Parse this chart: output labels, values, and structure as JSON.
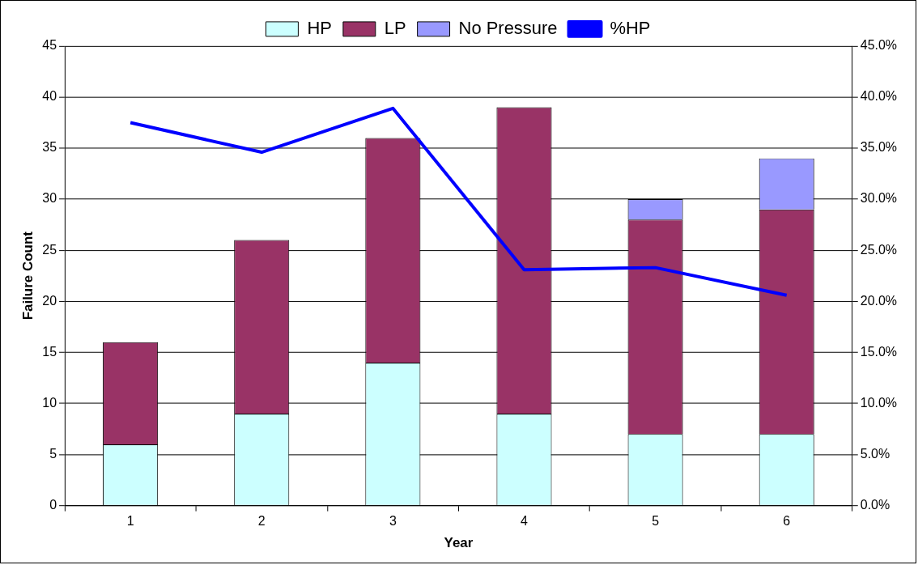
{
  "chart_data": {
    "type": "bar",
    "stacked": true,
    "xlabel": "Year",
    "ylabel": "Failure Count",
    "categories": [
      "1",
      "2",
      "3",
      "4",
      "5",
      "6"
    ],
    "series": [
      {
        "name": "HP",
        "color": "#ccffff",
        "values": [
          6,
          9,
          14,
          9,
          7,
          7
        ]
      },
      {
        "name": "LP",
        "color": "#993366",
        "values": [
          10,
          17,
          22,
          30,
          21,
          22
        ]
      },
      {
        "name": "No Pressure",
        "color": "#9999ff",
        "values": [
          null,
          null,
          null,
          null,
          2,
          5
        ]
      },
      {
        "name": "%HP",
        "color": "#0000ff",
        "type": "line",
        "axis": "y2",
        "values": [
          37.5,
          34.6,
          38.9,
          23.1,
          23.3,
          20.6
        ]
      }
    ],
    "ylim": [
      0,
      45
    ],
    "yticks": [
      0,
      5,
      10,
      15,
      20,
      25,
      30,
      35,
      40,
      45
    ],
    "y2lim": [
      0,
      45
    ],
    "y2ticks": [
      {
        "value": 0,
        "label": "0.0%"
      },
      {
        "value": 5,
        "label": "5.0%"
      },
      {
        "value": 10,
        "label": "10.0%"
      },
      {
        "value": 15,
        "label": "15.0%"
      },
      {
        "value": 20,
        "label": "20.0%"
      },
      {
        "value": 25,
        "label": "25.0%"
      },
      {
        "value": 30,
        "label": "30.0%"
      },
      {
        "value": 35,
        "label": "35.0%"
      },
      {
        "value": 40,
        "label": "40.0%"
      },
      {
        "value": 45,
        "label": "45.0%"
      }
    ],
    "grid": "y",
    "legend": "top",
    "marker": "none",
    "line_style": "solid"
  }
}
